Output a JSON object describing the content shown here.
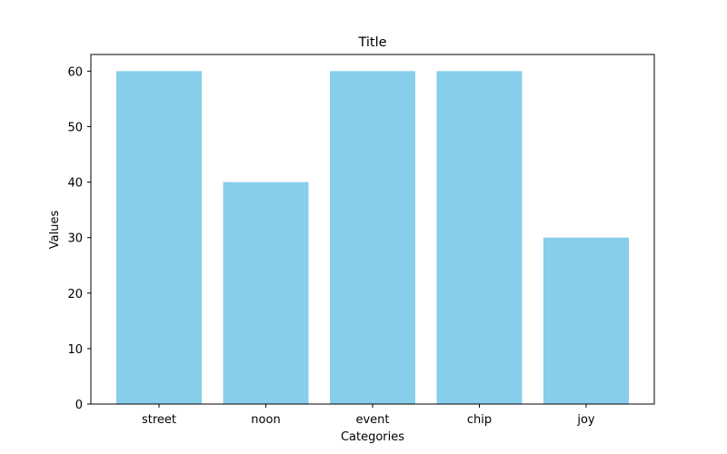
{
  "chart_data": {
    "type": "bar",
    "title": "Title",
    "xlabel": "Categories",
    "ylabel": "Values",
    "categories": [
      "street",
      "noon",
      "event",
      "chip",
      "joy"
    ],
    "values": [
      60,
      40,
      60,
      60,
      30
    ],
    "ylim": [
      0,
      63
    ],
    "yticks": [
      0,
      10,
      20,
      30,
      40,
      50,
      60
    ],
    "bar_color": "#87ceeb",
    "grid": false,
    "legend": "none"
  }
}
